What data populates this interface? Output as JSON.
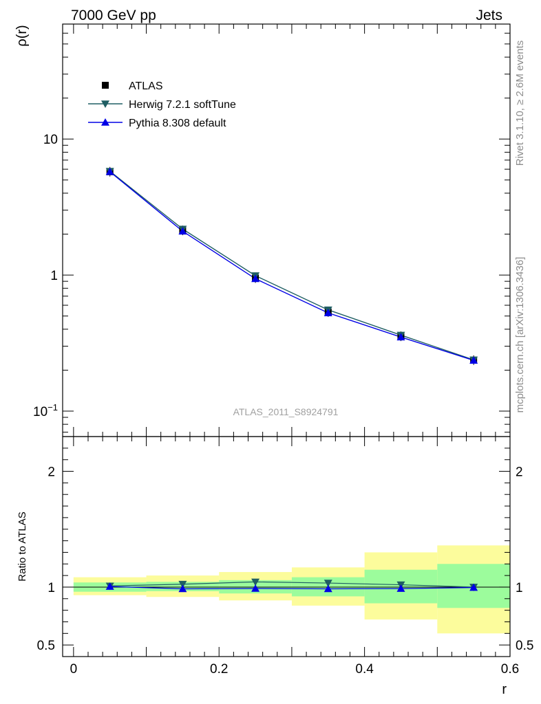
{
  "header": {
    "left_title": "7000 GeV pp",
    "right_title": "Jets"
  },
  "side_labels": {
    "rivet": "Rivet 3.1.10, ≥ 2.6M events",
    "mcplots": "mcplots.cern.ch [arXiv:1306.3436]"
  },
  "watermark": "ATLAS_2011_S8924791",
  "colors": {
    "atlas": "#000000",
    "herwig": "#1f5e63",
    "pythia": "#0000e6",
    "band_inner": "#9cfc9c",
    "band_outer": "#fcfc9c"
  },
  "legend": {
    "items": [
      {
        "label": "ATLAS",
        "marker": "square",
        "color": "#000000",
        "line": false
      },
      {
        "label": "Herwig 7.2.1 softTune",
        "marker": "triangle-down",
        "color": "#1f5e63",
        "line": true
      },
      {
        "label": "Pythia 8.308 default",
        "marker": "triangle-up",
        "color": "#0000e6",
        "line": true
      }
    ]
  },
  "chart_data": {
    "type": "line",
    "main": {
      "ylabel": "ρ(r)",
      "yscale": "log",
      "ylim": [
        0.065,
        70
      ],
      "yticks": [
        {
          "value": 0.1,
          "base": "10",
          "exp": "−1"
        },
        {
          "value": 1,
          "label": "1"
        },
        {
          "value": 10,
          "label": "10"
        }
      ],
      "x": [
        0.05,
        0.15,
        0.25,
        0.35,
        0.45,
        0.55
      ],
      "series": [
        {
          "name": "ATLAS",
          "values": [
            5.75,
            2.13,
            0.95,
            0.535,
            0.355,
            0.237
          ]
        },
        {
          "name": "Herwig 7.2.1 softTune",
          "values": [
            5.8,
            2.18,
            0.99,
            0.555,
            0.362,
            0.238
          ]
        },
        {
          "name": "Pythia 8.308 default",
          "values": [
            5.75,
            2.1,
            0.94,
            0.527,
            0.35,
            0.236
          ]
        }
      ]
    },
    "ratio": {
      "ylabel": "Ratio to ATLAS",
      "ylim": [
        0.4,
        2.3
      ],
      "yticks": [
        {
          "value": 0.5,
          "label": "0.5"
        },
        {
          "value": 1,
          "label": "1"
        },
        {
          "value": 2,
          "label": "2"
        }
      ],
      "bins": [
        [
          0,
          0.1
        ],
        [
          0.1,
          0.2
        ],
        [
          0.2,
          0.3
        ],
        [
          0.3,
          0.4
        ],
        [
          0.4,
          0.5
        ],
        [
          0.5,
          0.6
        ]
      ],
      "band_inner": [
        [
          0.96,
          1.04
        ],
        [
          0.965,
          1.045
        ],
        [
          0.945,
          1.06
        ],
        [
          0.92,
          1.085
        ],
        [
          0.86,
          1.15
        ],
        [
          0.82,
          1.2
        ]
      ],
      "band_outer": [
        [
          0.93,
          1.085
        ],
        [
          0.915,
          1.1
        ],
        [
          0.885,
          1.13
        ],
        [
          0.84,
          1.17
        ],
        [
          0.72,
          1.3
        ],
        [
          0.6,
          1.36
        ]
      ],
      "series": [
        {
          "name": "Herwig 7.2.1 softTune",
          "values": [
            1.01,
            1.025,
            1.045,
            1.035,
            1.02,
            1.0
          ]
        },
        {
          "name": "Pythia 8.308 default",
          "values": [
            1.005,
            0.985,
            0.988,
            0.985,
            0.987,
            0.996
          ]
        }
      ]
    },
    "xaxis": {
      "label": "r",
      "xlim": [
        -0.015,
        0.6
      ],
      "ticks": [
        {
          "value": 0,
          "label": "0"
        },
        {
          "value": 0.2,
          "label": "0.2"
        },
        {
          "value": 0.4,
          "label": "0.4"
        },
        {
          "value": 0.6,
          "label": "0.6"
        }
      ]
    }
  }
}
